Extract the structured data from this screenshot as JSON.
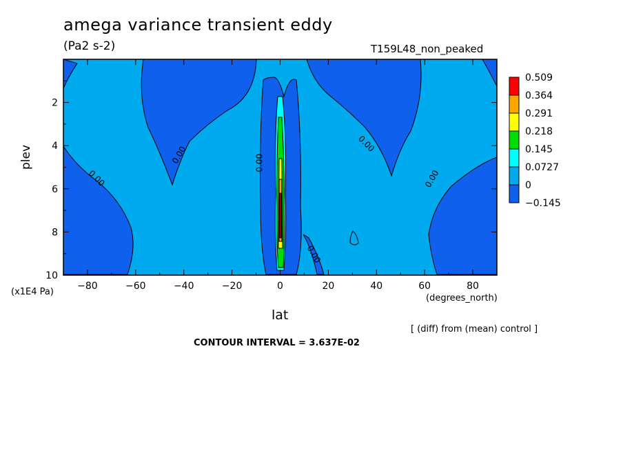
{
  "chart_data": {
    "type": "contour",
    "title": "amega variance transient eddy",
    "units": "(Pa2 s-2)",
    "run_name": "T159L48_non_peaked",
    "xlabel": "lat",
    "x_unit": "(degrees_north)",
    "ylabel": "plev",
    "y_unit": "(x1E4 Pa)",
    "xlim": [
      -90,
      90
    ],
    "ylim": [
      10,
      0
    ],
    "x_ticks": [
      -80,
      -60,
      -40,
      -20,
      0,
      20,
      40,
      60,
      80
    ],
    "y_ticks": [
      2,
      4,
      6,
      8,
      10
    ],
    "note": "[ (diff) from (mean) control ]",
    "contour_interval_label": "CONTOUR INTERVAL = 3.637E-02",
    "colorbar": {
      "levels": [
        "0.509",
        "0.364",
        "0.291",
        "0.218",
        "0.145",
        "0.0727",
        "0",
        "-0.145"
      ],
      "colors": [
        "#ff0000",
        "#ffa500",
        "#ffff00",
        "#00dd00",
        "#00ffff",
        "#00aaee",
        "#1060ee"
      ]
    },
    "contour_labels": [
      "0.00",
      "0.00",
      "0.00",
      "0.00",
      "0.00",
      "0.00"
    ]
  }
}
